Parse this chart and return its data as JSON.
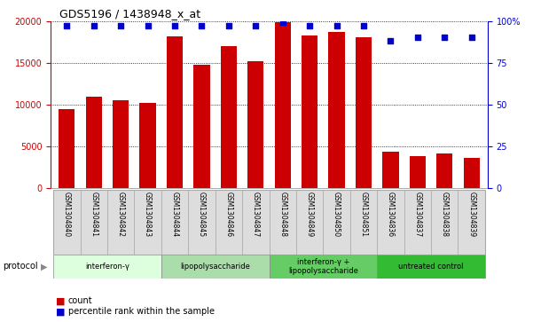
{
  "title": "GDS5196 / 1438948_x_at",
  "samples": [
    "GSM1304840",
    "GSM1304841",
    "GSM1304842",
    "GSM1304843",
    "GSM1304844",
    "GSM1304845",
    "GSM1304846",
    "GSM1304847",
    "GSM1304848",
    "GSM1304849",
    "GSM1304850",
    "GSM1304851",
    "GSM1304836",
    "GSM1304837",
    "GSM1304838",
    "GSM1304839"
  ],
  "counts": [
    9500,
    11000,
    10500,
    10200,
    18200,
    14800,
    17000,
    15200,
    19800,
    18300,
    18700,
    18100,
    4400,
    3800,
    4200,
    3600
  ],
  "percentile_ranks": [
    97,
    97,
    97,
    97,
    97,
    97,
    97,
    97,
    99,
    97,
    97,
    97,
    88,
    90,
    90,
    90
  ],
  "ylim_left": [
    0,
    20000
  ],
  "ylim_right": [
    0,
    100
  ],
  "yticks_left": [
    0,
    5000,
    10000,
    15000,
    20000
  ],
  "yticks_right": [
    0,
    25,
    50,
    75,
    100
  ],
  "bar_color": "#cc0000",
  "dot_color": "#0000cc",
  "groups": [
    {
      "label": "interferon-γ",
      "start": 0,
      "end": 4,
      "color": "#ddffdd"
    },
    {
      "label": "lipopolysaccharide",
      "start": 4,
      "end": 8,
      "color": "#aaddaa"
    },
    {
      "label": "interferon-γ +\nlipopolysaccharide",
      "start": 8,
      "end": 12,
      "color": "#66cc66"
    },
    {
      "label": "untreated control",
      "start": 12,
      "end": 16,
      "color": "#33bb33"
    }
  ],
  "right_axis_color": "#0000cc",
  "left_axis_color": "#cc0000",
  "grid_color": "#000000",
  "label_count": "count",
  "label_percentile": "percentile rank within the sample",
  "bg_color": "#ffffff"
}
